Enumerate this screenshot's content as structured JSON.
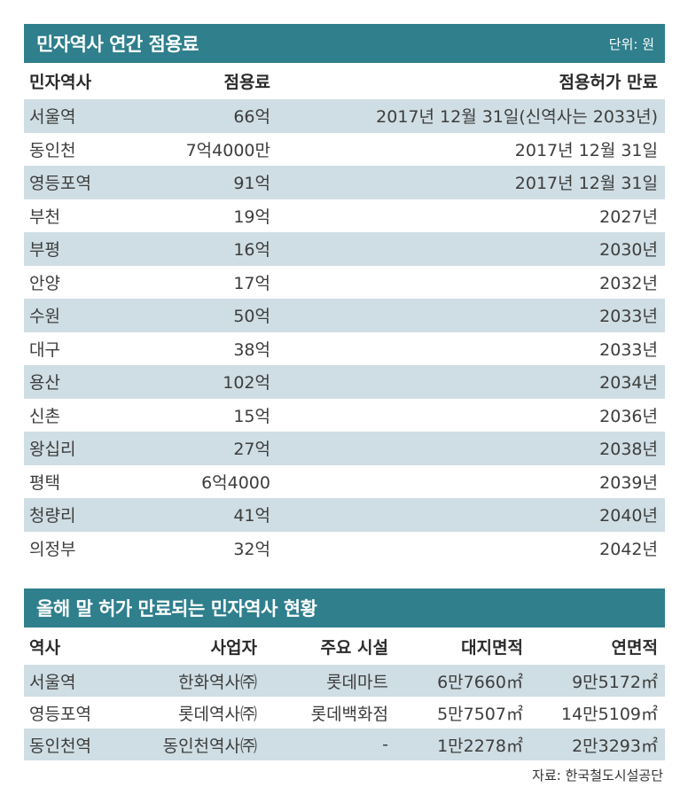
{
  "table1": {
    "title": "민자역사 연간 점용료",
    "unit": "단위: 원",
    "headers": [
      "민자역사",
      "점용료",
      "점용허가 만료"
    ],
    "rows": [
      [
        "서울역",
        "66억",
        "2017년 12월 31일(신역사는 2033년)"
      ],
      [
        "동인천",
        "7억4000만",
        "2017년 12월 31일"
      ],
      [
        "영등포역",
        "91억",
        "2017년 12월 31일"
      ],
      [
        "부천",
        "19억",
        "2027년"
      ],
      [
        "부평",
        "16억",
        "2030년"
      ],
      [
        "안양",
        "17억",
        "2032년"
      ],
      [
        "수원",
        "50억",
        "2033년"
      ],
      [
        "대구",
        "38억",
        "2033년"
      ],
      [
        "용산",
        "102억",
        "2034년"
      ],
      [
        "신촌",
        "15억",
        "2036년"
      ],
      [
        "왕십리",
        "27억",
        "2038년"
      ],
      [
        "평택",
        "6억4000",
        "2039년"
      ],
      [
        "청량리",
        "41억",
        "2040년"
      ],
      [
        "의정부",
        "32억",
        "2042년"
      ]
    ]
  },
  "table2": {
    "title": "올해 말 허가 만료되는 민자역사 현황",
    "headers": [
      "역사",
      "사업자",
      "주요 시설",
      "대지면적",
      "연면적"
    ],
    "rows": [
      [
        "서울역",
        "한화역사㈜",
        "롯데마트",
        "6만7660㎡",
        "9만5172㎡"
      ],
      [
        "영등포역",
        "롯데역사㈜",
        "롯데백화점",
        "5만7507㎡",
        "14만5109㎡"
      ],
      [
        "동인천역",
        "동인천역사㈜",
        "-",
        "1만2278㎡",
        "2만3293㎡"
      ]
    ]
  },
  "source": "자료: 한국철도시설공단",
  "colors": {
    "banner": "#2f7f8d",
    "stripe": "#cfdee4"
  }
}
